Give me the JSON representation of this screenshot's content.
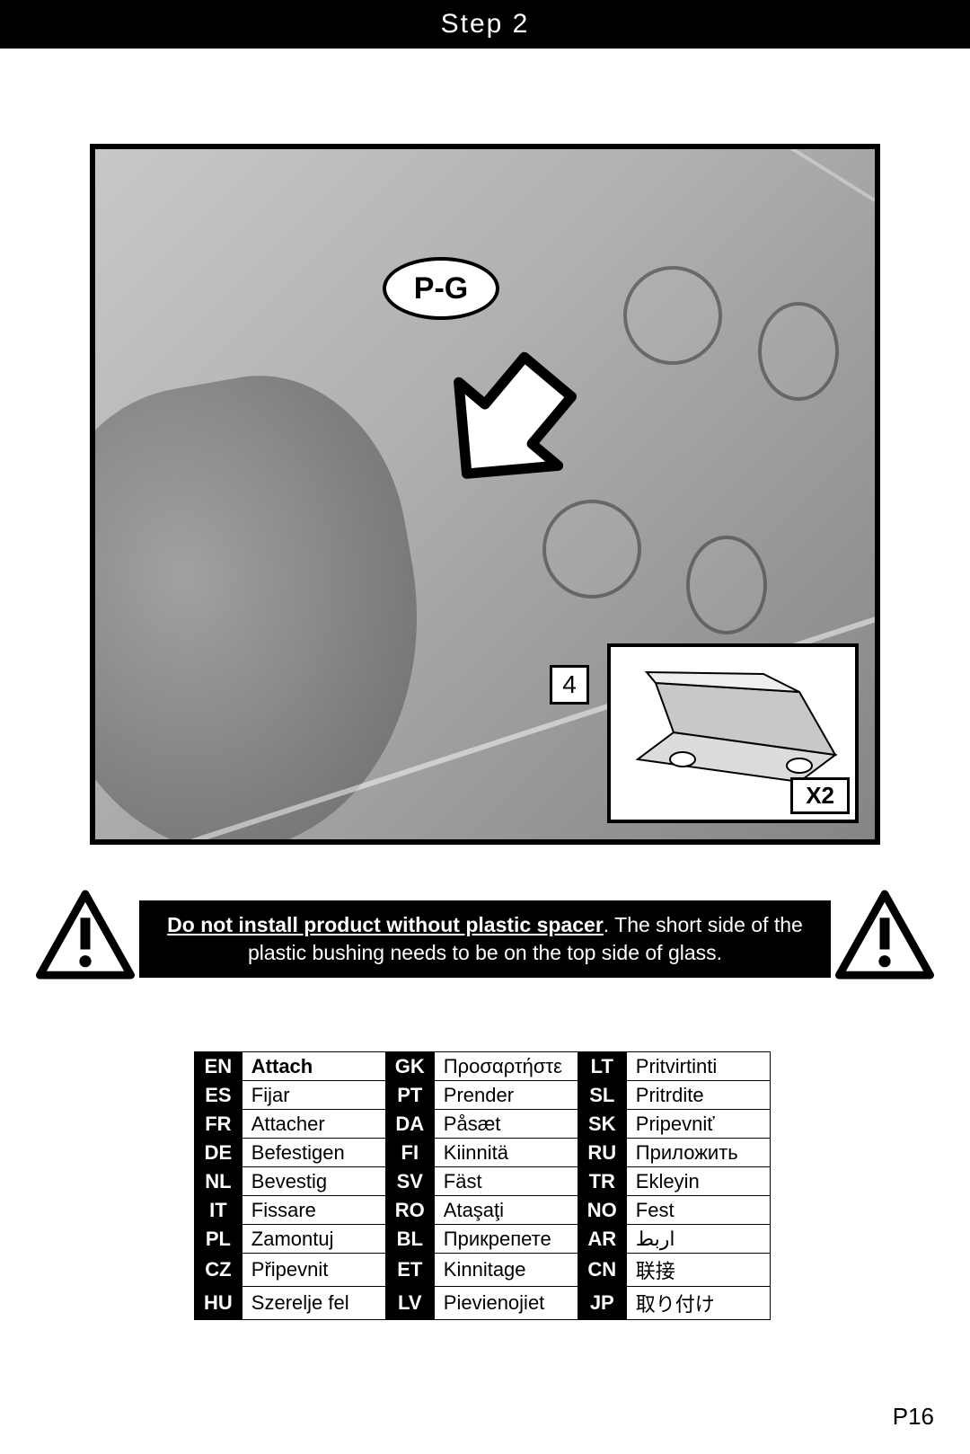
{
  "step_title": "Step 2",
  "part_label": "P-G",
  "inset_quantity": "X2",
  "inset_index": "4",
  "warning": {
    "underline": "Do not install product without plastic spacer",
    "rest": ".  The short side of the plastic bushing needs to be on the top side of glass."
  },
  "translations": {
    "col1": [
      {
        "code": "EN",
        "term": "Attach",
        "bold": true
      },
      {
        "code": "ES",
        "term": "Fijar"
      },
      {
        "code": "FR",
        "term": "Attacher"
      },
      {
        "code": "DE",
        "term": "Befestigen"
      },
      {
        "code": "NL",
        "term": "Bevestig"
      },
      {
        "code": "IT",
        "term": "Fissare"
      },
      {
        "code": "PL",
        "term": "Zamontuj"
      },
      {
        "code": "CZ",
        "term": "Připevnit"
      },
      {
        "code": "HU",
        "term": "Szerelje fel"
      }
    ],
    "col2": [
      {
        "code": "GK",
        "term": "Προσαρτήστε"
      },
      {
        "code": "PT",
        "term": "Prender"
      },
      {
        "code": "DA",
        "term": "Påsæt"
      },
      {
        "code": "FI",
        "term": "Kiinnitä"
      },
      {
        "code": "SV",
        "term": "Fäst"
      },
      {
        "code": "RO",
        "term": "Ataşaţi"
      },
      {
        "code": "BL",
        "term": "Прикрепете"
      },
      {
        "code": "ET",
        "term": "Kinnitage"
      },
      {
        "code": "LV",
        "term": "Pievienojiet"
      }
    ],
    "col3": [
      {
        "code": "LT",
        "term": "Pritvirtinti"
      },
      {
        "code": "SL",
        "term": "Pritrdite"
      },
      {
        "code": "SK",
        "term": "Pripevniť"
      },
      {
        "code": "RU",
        "term": "Приложить"
      },
      {
        "code": "TR",
        "term": "Ekleyin"
      },
      {
        "code": "NO",
        "term": "Fest"
      },
      {
        "code": "AR",
        "term": "اربط"
      },
      {
        "code": "CN",
        "term": "联接"
      },
      {
        "code": "JP",
        "term": "取り付け"
      }
    ]
  },
  "page_number": "P16"
}
